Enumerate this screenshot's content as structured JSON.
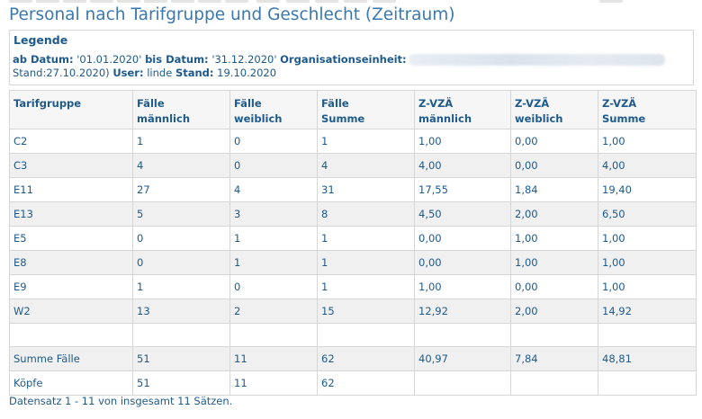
{
  "title": "Personal nach Tarifgruppe und Geschlecht (Zeitraum)",
  "legend": {
    "heading": "Legende",
    "ab_datum_label": "ab Datum:",
    "ab_datum_value": "'01.01.2020'",
    "bis_datum_label": "bis Datum:",
    "bis_datum_value": "'31.12.2020'",
    "org_label": "Organisationseinheit:",
    "stand_text": "Stand:27.10.2020)",
    "user_label": "User:",
    "user_value": "linde",
    "stand_label": "Stand:",
    "stand_value": "19.10.2020"
  },
  "table": {
    "headers": [
      [
        "Tarifgruppe",
        ""
      ],
      [
        "Fälle",
        "männlich"
      ],
      [
        "Fälle",
        "weiblich"
      ],
      [
        "Fälle",
        "Summe"
      ],
      [
        "Z-VZÄ",
        "männlich"
      ],
      [
        "Z-VZÄ",
        "weiblich"
      ],
      [
        "Z-VZÄ",
        "Summe"
      ]
    ],
    "rows": [
      [
        "C2",
        "1",
        "0",
        "1",
        "1,00",
        "0,00",
        "1,00"
      ],
      [
        "C3",
        "4",
        "0",
        "4",
        "4,00",
        "0,00",
        "4,00"
      ],
      [
        "E11",
        "27",
        "4",
        "31",
        "17,55",
        "1,84",
        "19,40"
      ],
      [
        "E13",
        "5",
        "3",
        "8",
        "4,50",
        "2,00",
        "6,50"
      ],
      [
        "E5",
        "0",
        "1",
        "1",
        "0,00",
        "1,00",
        "1,00"
      ],
      [
        "E8",
        "0",
        "1",
        "1",
        "0,00",
        "1,00",
        "1,00"
      ],
      [
        "E9",
        "1",
        "0",
        "1",
        "1,00",
        "0,00",
        "1,00"
      ],
      [
        "W2",
        "13",
        "2",
        "15",
        "12,92",
        "2,00",
        "14,92"
      ],
      [
        "",
        "",
        "",
        "",
        "",
        "",
        ""
      ],
      [
        "Summe Fälle",
        "51",
        "11",
        "62",
        "40,97",
        "7,84",
        "48,81"
      ],
      [
        "Köpfe",
        "51",
        "11",
        "62",
        "",
        "",
        ""
      ]
    ]
  },
  "footer": "Datensatz 1 - 11 von insgesamt 11 Sätzen."
}
